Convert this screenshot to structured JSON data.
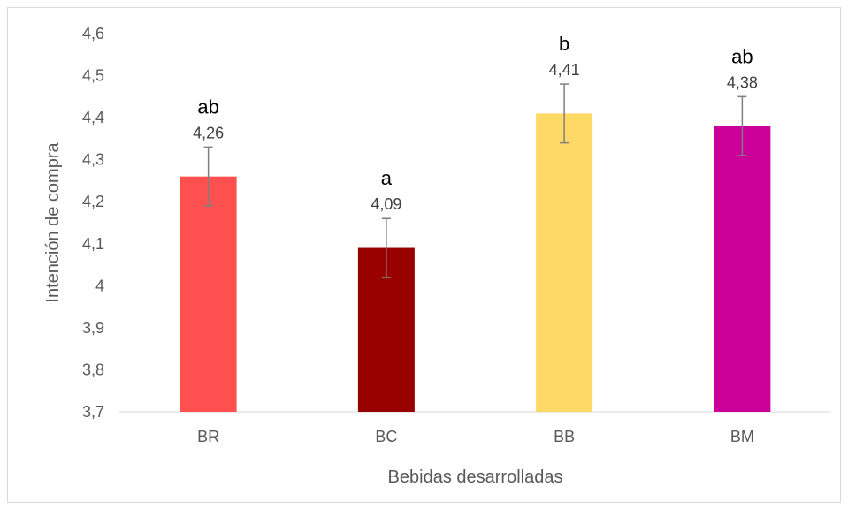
{
  "chart_data": {
    "type": "bar",
    "categories": [
      "BR",
      "BC",
      "BB",
      "BM"
    ],
    "values": [
      4.26,
      4.09,
      4.41,
      4.38
    ],
    "value_labels": [
      "4,26",
      "4,09",
      "4,41",
      "4,38"
    ],
    "error_low": [
      4.19,
      4.02,
      4.34,
      4.31
    ],
    "error_high": [
      4.33,
      4.16,
      4.48,
      4.45
    ],
    "group_letters": [
      "ab",
      "a",
      "b",
      "ab"
    ],
    "colors": [
      "#ff5050",
      "#990000",
      "#ffd966",
      "#cc0099"
    ],
    "xlabel": "Bebidas desarrolladas",
    "ylabel": "Intención de compra",
    "ylim": [
      3.7,
      4.6
    ],
    "yticks": [
      3.7,
      3.8,
      3.9,
      4.0,
      4.1,
      4.2,
      4.3,
      4.4,
      4.5,
      4.6
    ],
    "ytick_labels": [
      "3,7",
      "3,8",
      "3,9",
      "4",
      "4,1",
      "4,2",
      "4,3",
      "4,4",
      "4,5",
      "4,6"
    ],
    "grid": false,
    "legend": "none",
    "axis_line_color": "#d9d9d9",
    "error_bar_color": "#7f7f7f"
  }
}
